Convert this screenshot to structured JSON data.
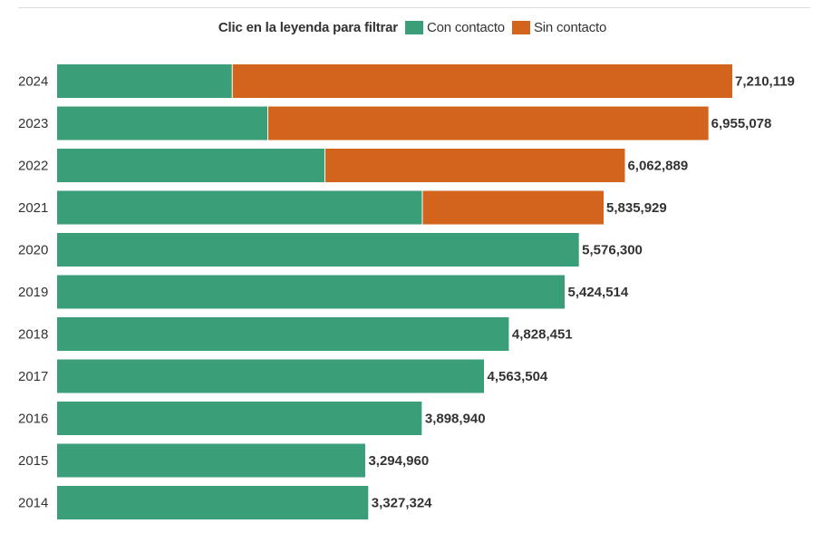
{
  "legend": {
    "title": "Clic en la leyenda para filtrar",
    "items": [
      {
        "label": "Con contacto",
        "color": "#3a9e78"
      },
      {
        "label": "Sin contacto",
        "color": "#d2641e"
      }
    ]
  },
  "chart_data": {
    "type": "bar",
    "orientation": "horizontal",
    "stacked": true,
    "categories": [
      "2024",
      "2023",
      "2022",
      "2021",
      "2020",
      "2019",
      "2018",
      "2017",
      "2016",
      "2015",
      "2014"
    ],
    "series": [
      {
        "name": "Con contacto",
        "color": "#3a9e78",
        "values": [
          1870000,
          2250000,
          2860000,
          3900000,
          5576300,
          5424514,
          4828451,
          4563504,
          3898940,
          3294960,
          3327324
        ]
      },
      {
        "name": "Sin contacto",
        "color": "#d2641e",
        "values": [
          5340119,
          4705078,
          3202889,
          1935929,
          0,
          0,
          0,
          0,
          0,
          0,
          0
        ]
      }
    ],
    "totals": [
      7210119,
      6955078,
      6062889,
      5835929,
      5576300,
      5424514,
      4828451,
      4563504,
      3898940,
      3294960,
      3327324
    ],
    "total_labels": [
      "7,210,119",
      "6,955,078",
      "6,062,889",
      "5,835,929",
      "5,576,300",
      "5,424,514",
      "4,828,451",
      "4,563,504",
      "3,898,940",
      "3,294,960",
      "3,327,324"
    ],
    "xlim": [
      0,
      7210119
    ],
    "grid": false,
    "legend_position": "top"
  }
}
